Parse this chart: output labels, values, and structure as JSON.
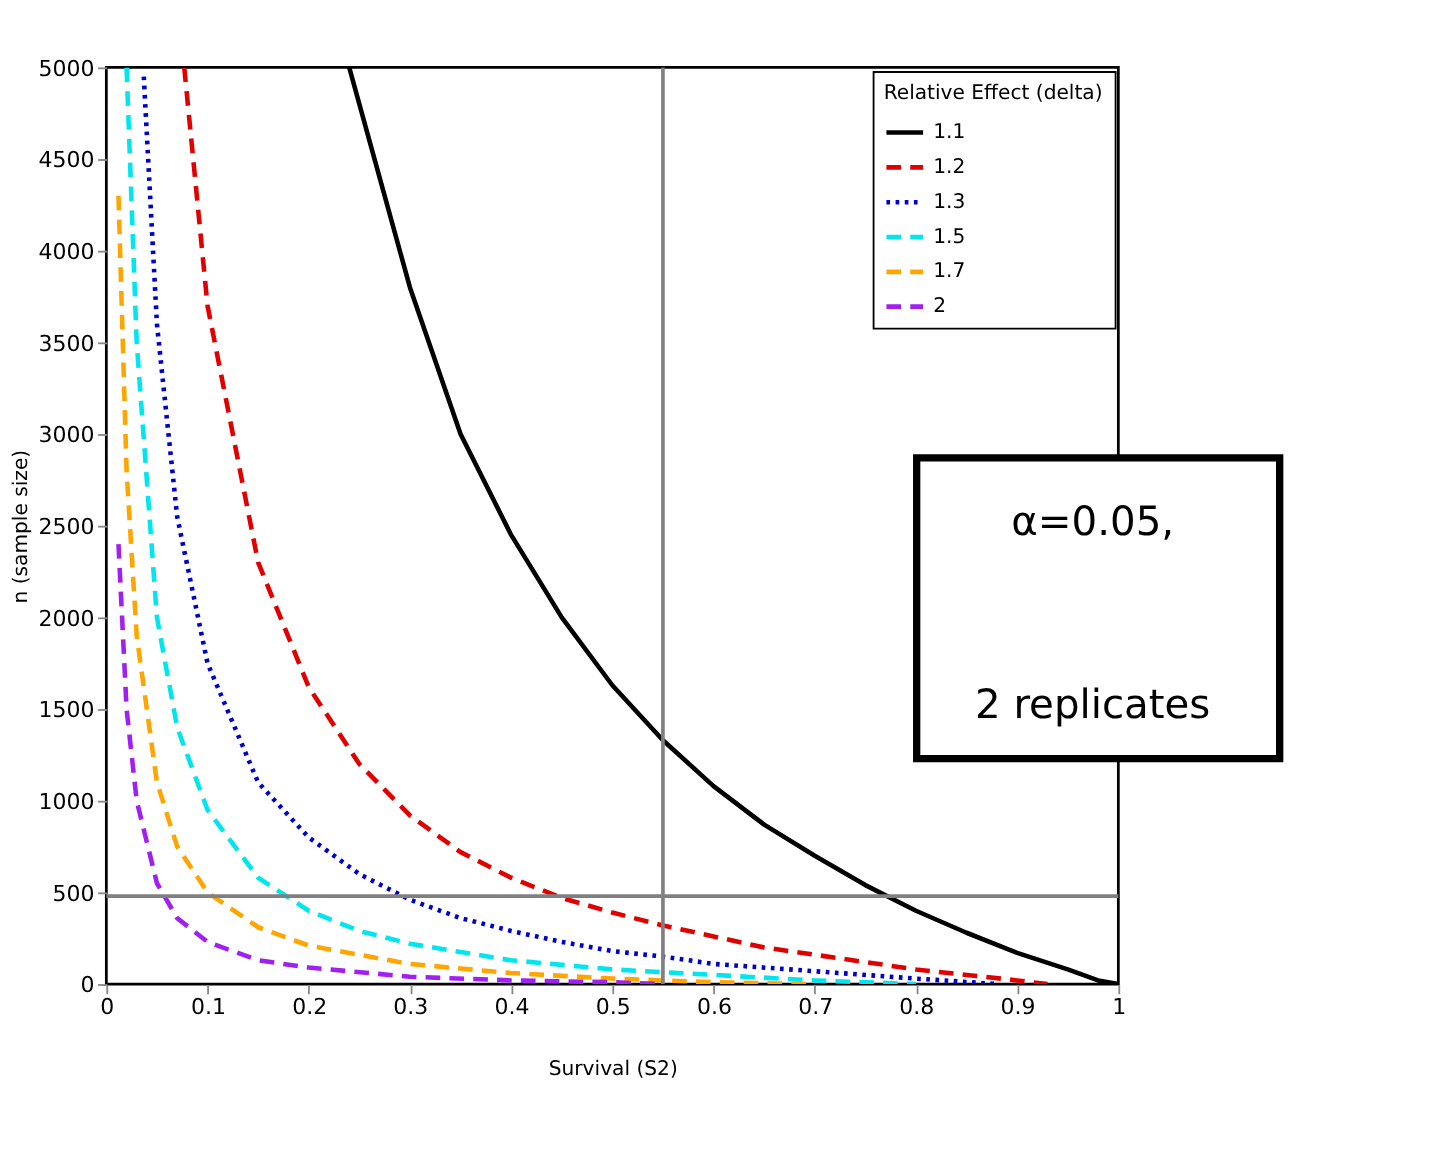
{
  "chart_data": {
    "type": "line",
    "xlabel": "Survival (S2)",
    "ylabel": "n (sample size)",
    "legend_title": "Relative Effect (delta)",
    "legend": "top right",
    "grid": false,
    "marker": "none",
    "xlim": [
      0,
      1
    ],
    "xticks": [
      0,
      0.1,
      0.2,
      0.3,
      0.4,
      0.5,
      0.6,
      0.7,
      0.8,
      0.9,
      1
    ],
    "ylim": [
      0,
      5000
    ],
    "yticks": [
      0,
      500,
      1000,
      1500,
      2000,
      2500,
      3000,
      3500,
      4000,
      4500,
      5000
    ],
    "ref_lines": [
      {
        "axis": "x",
        "value": 0.55,
        "color": "#808080"
      },
      {
        "axis": "y",
        "value": 480,
        "color": "#808080"
      }
    ],
    "annotations": [
      "α=0.05,",
      "2 replicates"
    ],
    "series": [
      {
        "name": "1.1",
        "color": "#000000",
        "line_style": "solid",
        "x": [
          0.24,
          0.3,
          0.35,
          0.4,
          0.45,
          0.5,
          0.55,
          0.6,
          0.65,
          0.7,
          0.75,
          0.8,
          0.85,
          0.9,
          0.95,
          0.98,
          1.0
        ],
        "values": [
          5000,
          3800,
          3000,
          2450,
          2000,
          1630,
          1330,
          1080,
          870,
          700,
          540,
          400,
          280,
          170,
          80,
          20,
          0
        ]
      },
      {
        "name": "1.2",
        "color": "#e00000",
        "line_style": "dashed",
        "x": [
          0.077,
          0.1,
          0.15,
          0.2,
          0.25,
          0.3,
          0.35,
          0.4,
          0.45,
          0.5,
          0.55,
          0.6,
          0.65,
          0.7,
          0.75,
          0.8,
          0.85,
          0.9,
          0.93
        ],
        "values": [
          5000,
          3700,
          2300,
          1620,
          1200,
          920,
          720,
          580,
          470,
          390,
          320,
          260,
          200,
          160,
          120,
          80,
          50,
          20,
          0
        ]
      },
      {
        "name": "1.3",
        "color": "#0000cc",
        "line_style": "dotted",
        "x": [
          0.037,
          0.05,
          0.07,
          0.1,
          0.15,
          0.2,
          0.25,
          0.3,
          0.35,
          0.4,
          0.45,
          0.5,
          0.55,
          0.6,
          0.7,
          0.8,
          0.88
        ],
        "values": [
          4950,
          3600,
          2550,
          1750,
          1100,
          800,
          600,
          460,
          360,
          290,
          230,
          180,
          150,
          110,
          70,
          30,
          0
        ]
      },
      {
        "name": "1.5",
        "color": "#00e5ee",
        "line_style": "dashed",
        "x": [
          0.02,
          0.03,
          0.05,
          0.07,
          0.1,
          0.15,
          0.2,
          0.25,
          0.3,
          0.4,
          0.5,
          0.6,
          0.7,
          0.8
        ],
        "values": [
          5000,
          3500,
          2000,
          1400,
          950,
          580,
          400,
          290,
          220,
          130,
          80,
          50,
          20,
          0
        ]
      },
      {
        "name": "1.7",
        "color": "#ffa500",
        "line_style": "dashed",
        "x": [
          0.012,
          0.02,
          0.03,
          0.05,
          0.07,
          0.1,
          0.15,
          0.2,
          0.3,
          0.4,
          0.5,
          0.6,
          0.7
        ],
        "values": [
          4300,
          2800,
          1900,
          1100,
          750,
          500,
          310,
          210,
          110,
          60,
          30,
          10,
          0
        ]
      },
      {
        "name": "2",
        "color": "#a020f0",
        "line_style": "dashed",
        "x": [
          0.012,
          0.02,
          0.03,
          0.05,
          0.07,
          0.1,
          0.15,
          0.2,
          0.3,
          0.4,
          0.5,
          0.55
        ],
        "values": [
          2400,
          1500,
          1000,
          550,
          360,
          230,
          130,
          90,
          40,
          20,
          10,
          0
        ]
      }
    ]
  }
}
